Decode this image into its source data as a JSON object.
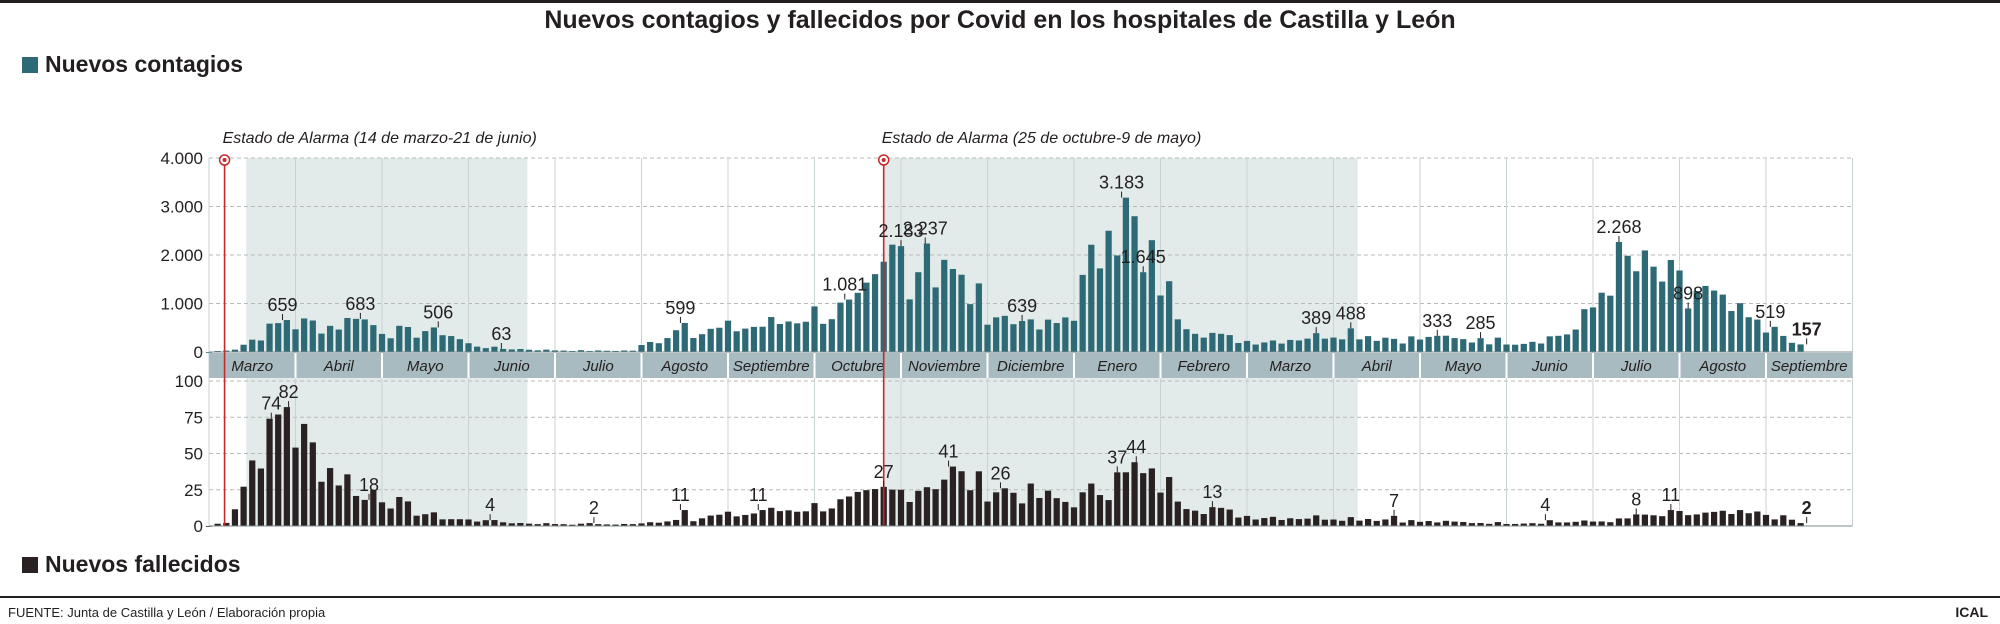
{
  "title": "Nuevos contagios y fallecidos por Covid en los hospitales de Castilla y León",
  "legend": {
    "cases_label": "Nuevos contagios",
    "deaths_label": "Nuevos fallecidos"
  },
  "colors": {
    "cases": "#2e6a75",
    "deaths": "#2a2122",
    "shading": "#e3ebea",
    "month_band": "#a8bbc0",
    "alarm_line": "#c42a2a",
    "grid": "#b9b9b9"
  },
  "footer": {
    "source": "FUENTE: Junta de Castilla y León / Elaboración propia",
    "brand": "ICAL"
  },
  "chart_data": [
    {
      "type": "bar",
      "name": "Nuevos contagios",
      "x_unit": "months since start of March 2020",
      "months": [
        "Marzo",
        "Abril",
        "Mayo",
        "Junio",
        "Julio",
        "Agosto",
        "Septiembre",
        "Octubre",
        "Noviembre",
        "Diciembre",
        "Enero",
        "Febrero",
        "Marzo",
        "Abril",
        "Mayo",
        "Junio",
        "Julio",
        "Agosto",
        "Septiembre"
      ],
      "y_ticks": [
        "4.000",
        "3.000",
        "2.000",
        "1.000",
        "0"
      ],
      "ylim": [
        0,
        4000
      ],
      "grid": true,
      "annotations": [
        {
          "x": 0.18,
          "label": "Estado de Alarma (14 de marzo-21 de junio)"
        },
        {
          "x": 7.8,
          "label": "Estado de Alarma (25 de octubre-9 de mayo)"
        }
      ],
      "alarm_periods": [
        [
          0.43,
          3.68
        ],
        [
          7.8,
          13.28
        ]
      ],
      "anchors": [
        [
          0,
          0
        ],
        [
          0.3,
          60
        ],
        [
          0.6,
          350
        ],
        [
          0.85,
          610
        ],
        [
          1.0,
          560
        ],
        [
          1.2,
          580
        ],
        [
          1.4,
          540
        ],
        [
          1.6,
          620
        ],
        [
          1.75,
          683
        ],
        [
          1.9,
          560
        ],
        [
          2.1,
          430
        ],
        [
          2.3,
          380
        ],
        [
          2.5,
          450
        ],
        [
          2.65,
          506
        ],
        [
          2.8,
          350
        ],
        [
          3.0,
          160
        ],
        [
          3.3,
          80
        ],
        [
          3.6,
          60
        ],
        [
          3.9,
          40
        ],
        [
          4.2,
          30
        ],
        [
          4.5,
          25
        ],
        [
          4.9,
          30
        ],
        [
          5.0,
          120
        ],
        [
          5.2,
          250
        ],
        [
          5.35,
          420
        ],
        [
          5.5,
          560
        ],
        [
          5.65,
          380
        ],
        [
          5.8,
          420
        ],
        [
          6.0,
          480
        ],
        [
          6.3,
          520
        ],
        [
          6.6,
          600
        ],
        [
          6.9,
          780
        ],
        [
          7.2,
          820
        ],
        [
          7.5,
          900
        ],
        [
          7.75,
          1350
        ],
        [
          7.9,
          2000
        ],
        [
          8.0,
          1800
        ],
        [
          8.1,
          1700
        ],
        [
          8.2,
          1900
        ],
        [
          8.3,
          1600
        ],
        [
          8.45,
          1750
        ],
        [
          8.6,
          1500
        ],
        [
          8.8,
          1200
        ],
        [
          9.0,
          900
        ],
        [
          9.2,
          700
        ],
        [
          9.4,
          500
        ],
        [
          9.6,
          480
        ],
        [
          9.8,
          560
        ],
        [
          10.0,
          900
        ],
        [
          10.15,
          1500
        ],
        [
          10.3,
          2100
        ],
        [
          10.45,
          2600
        ],
        [
          10.6,
          2900
        ],
        [
          10.75,
          2700
        ],
        [
          10.9,
          1800
        ],
        [
          11.05,
          1300
        ],
        [
          11.2,
          900
        ],
        [
          11.4,
          550
        ],
        [
          11.7,
          300
        ],
        [
          12.0,
          230
        ],
        [
          12.3,
          240
        ],
        [
          12.6,
          300
        ],
        [
          12.9,
          380
        ],
        [
          13.1,
          420
        ],
        [
          13.3,
          380
        ],
        [
          13.6,
          300
        ],
        [
          13.9,
          270
        ],
        [
          14.2,
          260
        ],
        [
          14.5,
          240
        ],
        [
          14.9,
          230
        ],
        [
          15.2,
          220
        ],
        [
          15.5,
          300
        ],
        [
          15.8,
          450
        ],
        [
          16.0,
          900
        ],
        [
          16.15,
          1500
        ],
        [
          16.3,
          1900
        ],
        [
          16.45,
          1700
        ],
        [
          16.6,
          1600
        ],
        [
          16.8,
          1500
        ],
        [
          17.0,
          1300
        ],
        [
          17.25,
          1250
        ],
        [
          17.5,
          900
        ],
        [
          17.8,
          650
        ],
        [
          18.0,
          420
        ],
        [
          18.25,
          200
        ],
        [
          18.47,
          120
        ]
      ],
      "peaks": [
        [
          0.85,
          659
        ],
        [
          1.75,
          683
        ],
        [
          2.65,
          506
        ],
        [
          3.38,
          63
        ],
        [
          5.45,
          599
        ],
        [
          7.35,
          1081
        ],
        [
          8.0,
          2183
        ],
        [
          8.28,
          2237
        ],
        [
          8.5,
          1900
        ],
        [
          9.4,
          639
        ],
        [
          10.35,
          2500
        ],
        [
          10.55,
          3183
        ],
        [
          10.7,
          2800
        ],
        [
          10.8,
          1645
        ],
        [
          12.8,
          389
        ],
        [
          13.2,
          488
        ],
        [
          14.2,
          333
        ],
        [
          14.7,
          285
        ],
        [
          16.3,
          2268
        ],
        [
          17.1,
          898
        ],
        [
          18.05,
          519
        ],
        [
          18.47,
          157
        ]
      ],
      "data_labels": [
        {
          "x": 0.85,
          "y": 659,
          "label": "659"
        },
        {
          "x": 1.75,
          "y": 683,
          "label": "683"
        },
        {
          "x": 2.65,
          "y": 506,
          "label": "506"
        },
        {
          "x": 3.38,
          "y": 63,
          "label": "63"
        },
        {
          "x": 5.45,
          "y": 599,
          "label": "599"
        },
        {
          "x": 7.35,
          "y": 1081,
          "label": "1.081"
        },
        {
          "x": 8.0,
          "y": 2183,
          "label": "2.183"
        },
        {
          "x": 8.28,
          "y": 2237,
          "label": "2.237"
        },
        {
          "x": 9.4,
          "y": 639,
          "label": "639"
        },
        {
          "x": 10.55,
          "y": 3183,
          "label": "3.183"
        },
        {
          "x": 10.8,
          "y": 1645,
          "label": "1.645"
        },
        {
          "x": 12.8,
          "y": 389,
          "label": "389"
        },
        {
          "x": 13.2,
          "y": 488,
          "label": "488"
        },
        {
          "x": 14.2,
          "y": 333,
          "label": "333"
        },
        {
          "x": 14.7,
          "y": 285,
          "label": "285"
        },
        {
          "x": 16.3,
          "y": 2268,
          "label": "2.268"
        },
        {
          "x": 17.1,
          "y": 898,
          "label": "898"
        },
        {
          "x": 18.05,
          "y": 519,
          "label": "519"
        },
        {
          "x": 18.47,
          "y": 157,
          "label": "157",
          "bold": true
        }
      ]
    },
    {
      "type": "bar",
      "name": "Nuevos fallecidos",
      "x_unit": "months since start of March 2020",
      "y_ticks": [
        "100",
        "75",
        "50",
        "25",
        "0"
      ],
      "ylim": [
        0,
        100
      ],
      "grid": true,
      "anchors": [
        [
          0,
          0
        ],
        [
          0.2,
          3
        ],
        [
          0.35,
          20
        ],
        [
          0.5,
          45
        ],
        [
          0.65,
          65
        ],
        [
          0.8,
          72
        ],
        [
          0.95,
          68
        ],
        [
          1.1,
          58
        ],
        [
          1.3,
          45
        ],
        [
          1.5,
          35
        ],
        [
          1.7,
          28
        ],
        [
          1.9,
          25
        ],
        [
          2.05,
          20
        ],
        [
          2.2,
          15
        ],
        [
          2.4,
          10
        ],
        [
          2.6,
          7
        ],
        [
          2.8,
          5
        ],
        [
          3.0,
          4
        ],
        [
          3.3,
          3
        ],
        [
          3.6,
          2
        ],
        [
          4.0,
          1.5
        ],
        [
          4.5,
          1
        ],
        [
          5.0,
          1.5
        ],
        [
          5.3,
          4
        ],
        [
          5.6,
          5
        ],
        [
          5.9,
          7
        ],
        [
          6.2,
          8
        ],
        [
          6.5,
          10
        ],
        [
          6.8,
          12
        ],
        [
          7.1,
          14
        ],
        [
          7.4,
          16
        ],
        [
          7.7,
          20
        ],
        [
          8.0,
          24
        ],
        [
          8.3,
          30
        ],
        [
          8.55,
          36
        ],
        [
          8.7,
          32
        ],
        [
          8.9,
          28
        ],
        [
          9.1,
          26
        ],
        [
          9.3,
          24
        ],
        [
          9.6,
          20
        ],
        [
          9.9,
          17
        ],
        [
          10.1,
          19
        ],
        [
          10.3,
          26
        ],
        [
          10.5,
          30
        ],
        [
          10.7,
          34
        ],
        [
          10.9,
          31
        ],
        [
          11.1,
          27
        ],
        [
          11.3,
          18
        ],
        [
          11.5,
          13
        ],
        [
          11.7,
          10
        ],
        [
          12.0,
          7
        ],
        [
          12.5,
          6
        ],
        [
          13.0,
          6
        ],
        [
          13.5,
          5
        ],
        [
          14.0,
          3
        ],
        [
          14.5,
          2.5
        ],
        [
          15.0,
          2
        ],
        [
          15.5,
          2.5
        ],
        [
          16.0,
          3
        ],
        [
          16.3,
          4
        ],
        [
          16.6,
          6
        ],
        [
          17.0,
          8
        ],
        [
          17.5,
          8
        ],
        [
          18.0,
          8
        ],
        [
          18.47,
          2
        ]
      ],
      "peaks": [
        [
          0.72,
          74
        ],
        [
          0.92,
          82
        ],
        [
          1.85,
          18
        ],
        [
          3.25,
          4
        ],
        [
          4.45,
          2
        ],
        [
          5.45,
          11
        ],
        [
          6.35,
          11
        ],
        [
          7.8,
          27
        ],
        [
          8.55,
          41
        ],
        [
          9.15,
          26
        ],
        [
          10.5,
          37
        ],
        [
          10.72,
          44
        ],
        [
          11.6,
          13
        ],
        [
          13.7,
          7
        ],
        [
          15.45,
          4
        ],
        [
          16.5,
          8
        ],
        [
          16.9,
          11
        ],
        [
          18.47,
          2
        ]
      ],
      "data_labels": [
        {
          "x": 0.72,
          "y": 74,
          "label": "74"
        },
        {
          "x": 0.92,
          "y": 82,
          "label": "82"
        },
        {
          "x": 1.85,
          "y": 18,
          "label": "18"
        },
        {
          "x": 3.25,
          "y": 4,
          "label": "4"
        },
        {
          "x": 4.45,
          "y": 2,
          "label": "2"
        },
        {
          "x": 5.45,
          "y": 11,
          "label": "11"
        },
        {
          "x": 6.35,
          "y": 11,
          "label": "11"
        },
        {
          "x": 7.8,
          "y": 27,
          "label": "27"
        },
        {
          "x": 8.55,
          "y": 41,
          "label": "41"
        },
        {
          "x": 9.15,
          "y": 26,
          "label": "26"
        },
        {
          "x": 10.5,
          "y": 37,
          "label": "37"
        },
        {
          "x": 10.72,
          "y": 44,
          "label": "44"
        },
        {
          "x": 11.6,
          "y": 13,
          "label": "13"
        },
        {
          "x": 13.7,
          "y": 7,
          "label": "7"
        },
        {
          "x": 15.45,
          "y": 4,
          "label": "4"
        },
        {
          "x": 16.5,
          "y": 8,
          "label": "8"
        },
        {
          "x": 16.9,
          "y": 11,
          "label": "11"
        },
        {
          "x": 18.47,
          "y": 2,
          "label": "2",
          "bold": true
        }
      ]
    }
  ]
}
